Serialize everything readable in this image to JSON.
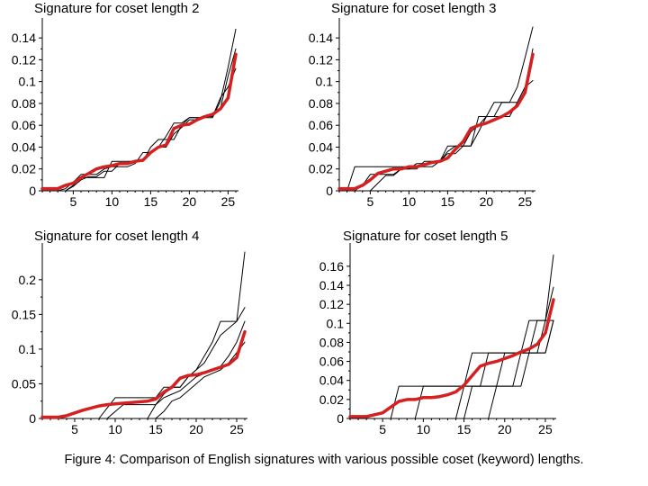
{
  "caption": "Figure 4: Comparison of English signatures with various possible coset (keyword) lengths.",
  "colors": {
    "reference": "#d42020",
    "coset": "#000000",
    "axis": "#000000"
  },
  "chart_data": [
    {
      "type": "line",
      "title": "Signature for coset length 2",
      "xlabel": "",
      "ylabel": "",
      "xlim": [
        1,
        26
      ],
      "ylim": [
        0,
        0.15
      ],
      "x_ticks": [
        5,
        10,
        15,
        20,
        25
      ],
      "y_ticks": [
        0,
        0.02,
        0.04,
        0.06,
        0.08,
        0.1,
        0.12,
        0.14
      ],
      "y_tick_labels": [
        "0",
        "0.02",
        "0.04",
        "0.06",
        "0.08",
        "0.1",
        "0.12",
        "0.14"
      ],
      "grid": false,
      "series": [
        {
          "role": "reference",
          "values": [
            0.002,
            0.002,
            0.002,
            0.005,
            0.007,
            0.012,
            0.016,
            0.02,
            0.022,
            0.023,
            0.025,
            0.025,
            0.027,
            0.028,
            0.035,
            0.04,
            0.042,
            0.057,
            0.06,
            0.061,
            0.065,
            0.068,
            0.07,
            0.075,
            0.085,
            0.125
          ]
        },
        {
          "role": "coset",
          "values": [
            0.0,
            0.0,
            0.0,
            0.0,
            0.005,
            0.012,
            0.012,
            0.012,
            0.012,
            0.027,
            0.027,
            0.027,
            0.027,
            0.027,
            0.04,
            0.047,
            0.047,
            0.047,
            0.06,
            0.067,
            0.067,
            0.067,
            0.067,
            0.082,
            0.113,
            0.148
          ]
        },
        {
          "role": "coset",
          "values": [
            0.0,
            0.0,
            0.0,
            0.002,
            0.008,
            0.015,
            0.015,
            0.015,
            0.02,
            0.022,
            0.022,
            0.022,
            0.025,
            0.035,
            0.035,
            0.04,
            0.05,
            0.062,
            0.062,
            0.067,
            0.067,
            0.067,
            0.07,
            0.075,
            0.105,
            0.13
          ]
        },
        {
          "role": "coset",
          "values": [
            0.0,
            0.0,
            0.0,
            0.0,
            0.004,
            0.01,
            0.013,
            0.013,
            0.018,
            0.018,
            0.025,
            0.025,
            0.028,
            0.028,
            0.035,
            0.04,
            0.04,
            0.052,
            0.058,
            0.065,
            0.065,
            0.068,
            0.068,
            0.085,
            0.095,
            0.112
          ]
        }
      ]
    },
    {
      "type": "line",
      "title": "Signature for coset length 3",
      "xlabel": "",
      "ylabel": "",
      "xlim": [
        1,
        26
      ],
      "ylim": [
        0,
        0.15
      ],
      "x_ticks": [
        5,
        10,
        15,
        20,
        25
      ],
      "y_ticks": [
        0,
        0.02,
        0.04,
        0.06,
        0.08,
        0.1,
        0.12,
        0.14
      ],
      "y_tick_labels": [
        "0",
        "0.02",
        "0.04",
        "0.06",
        "0.08",
        "0.1",
        "0.12",
        "0.14"
      ],
      "grid": false,
      "series": [
        {
          "role": "reference",
          "values": [
            0.002,
            0.002,
            0.002,
            0.005,
            0.01,
            0.016,
            0.018,
            0.02,
            0.02,
            0.022,
            0.022,
            0.024,
            0.026,
            0.027,
            0.03,
            0.038,
            0.045,
            0.057,
            0.06,
            0.062,
            0.065,
            0.068,
            0.072,
            0.078,
            0.09,
            0.125
          ]
        },
        {
          "role": "coset",
          "values": [
            0.0,
            0.0,
            0.022,
            0.022,
            0.022,
            0.022,
            0.022,
            0.022,
            0.022,
            0.022,
            0.022,
            0.022,
            0.022,
            0.027,
            0.041,
            0.041,
            0.041,
            0.041,
            0.068,
            0.068,
            0.081,
            0.081,
            0.081,
            0.095,
            0.122,
            0.15
          ]
        },
        {
          "role": "coset",
          "values": [
            0.0,
            0.0,
            0.0,
            0.005,
            0.015,
            0.015,
            0.015,
            0.015,
            0.02,
            0.02,
            0.025,
            0.025,
            0.025,
            0.027,
            0.036,
            0.041,
            0.041,
            0.041,
            0.054,
            0.068,
            0.068,
            0.081,
            0.081,
            0.081,
            0.095,
            0.13
          ]
        },
        {
          "role": "coset",
          "values": [
            0.0,
            0.0,
            0.0,
            0.0,
            0.0,
            0.007,
            0.014,
            0.014,
            0.02,
            0.02,
            0.02,
            0.027,
            0.027,
            0.027,
            0.034,
            0.034,
            0.041,
            0.054,
            0.06,
            0.068,
            0.068,
            0.068,
            0.068,
            0.081,
            0.095,
            0.101
          ]
        }
      ]
    },
    {
      "type": "line",
      "title": "Signature for coset length 4",
      "xlabel": "",
      "ylabel": "",
      "xlim": [
        1,
        26
      ],
      "ylim": [
        0,
        0.24
      ],
      "x_ticks": [
        5,
        10,
        15,
        20,
        25
      ],
      "y_ticks": [
        0,
        0.05,
        0.1,
        0.15,
        0.2
      ],
      "y_tick_labels": [
        "0",
        "0.05",
        "0.1",
        "0.15",
        "0.2"
      ],
      "grid": false,
      "series": [
        {
          "role": "reference",
          "values": [
            0.002,
            0.002,
            0.002,
            0.004,
            0.008,
            0.012,
            0.015,
            0.018,
            0.02,
            0.021,
            0.022,
            0.023,
            0.024,
            0.025,
            0.028,
            0.038,
            0.045,
            0.058,
            0.062,
            0.063,
            0.066,
            0.07,
            0.074,
            0.078,
            0.088,
            0.125
          ]
        },
        {
          "role": "coset",
          "values": [
            0.0,
            0.0,
            0.0,
            0.0,
            0.0,
            0.0,
            0.0,
            0.0,
            0.015,
            0.03,
            0.03,
            0.03,
            0.03,
            0.03,
            0.03,
            0.045,
            0.045,
            0.045,
            0.06,
            0.07,
            0.09,
            0.11,
            0.14,
            0.14,
            0.14,
            0.24
          ]
        },
        {
          "role": "coset",
          "values": [
            0.0,
            0.0,
            0.0,
            0.0,
            0.0,
            0.0,
            0.0,
            0.0,
            0.0,
            0.01,
            0.02,
            0.02,
            0.02,
            0.02,
            0.02,
            0.035,
            0.045,
            0.045,
            0.06,
            0.07,
            0.08,
            0.1,
            0.12,
            0.13,
            0.14,
            0.16
          ]
        },
        {
          "role": "coset",
          "values": [
            0.0,
            0.0,
            0.0,
            0.0,
            0.0,
            0.0,
            0.0,
            0.0,
            0.0,
            0.0,
            0.0,
            0.0,
            0.0,
            0.0,
            0.02,
            0.03,
            0.035,
            0.04,
            0.05,
            0.06,
            0.065,
            0.07,
            0.075,
            0.09,
            0.11,
            0.14
          ]
        },
        {
          "role": "coset",
          "values": [
            0.0,
            0.0,
            0.0,
            0.0,
            0.0,
            0.0,
            0.0,
            0.0,
            0.0,
            0.0,
            0.0,
            0.0,
            0.0,
            0.0,
            0.0,
            0.01,
            0.025,
            0.03,
            0.04,
            0.05,
            0.06,
            0.065,
            0.07,
            0.08,
            0.095,
            0.11
          ]
        }
      ]
    },
    {
      "type": "line",
      "title": "Signature for coset length 5",
      "xlabel": "",
      "ylabel": "",
      "xlim": [
        1,
        26
      ],
      "ylim": [
        0,
        0.175
      ],
      "x_ticks": [
        5,
        10,
        15,
        20,
        25
      ],
      "y_ticks": [
        0,
        0.02,
        0.04,
        0.06,
        0.08,
        0.1,
        0.12,
        0.14,
        0.16
      ],
      "y_tick_labels": [
        "0",
        "0.02",
        "0.04",
        "0.06",
        "0.08",
        "0.1",
        "0.12",
        "0.14",
        "0.16"
      ],
      "grid": false,
      "series": [
        {
          "role": "reference",
          "values": [
            0.002,
            0.002,
            0.002,
            0.004,
            0.006,
            0.012,
            0.018,
            0.02,
            0.02,
            0.022,
            0.022,
            0.023,
            0.025,
            0.028,
            0.035,
            0.045,
            0.055,
            0.058,
            0.06,
            0.063,
            0.066,
            0.07,
            0.073,
            0.078,
            0.09,
            0.125
          ]
        },
        {
          "role": "coset",
          "values": [
            0.0,
            0.0,
            0.0,
            0.0,
            0.0,
            0.0,
            0.034,
            0.034,
            0.034,
            0.034,
            0.034,
            0.034,
            0.034,
            0.034,
            0.034,
            0.069,
            0.069,
            0.069,
            0.069,
            0.069,
            0.069,
            0.069,
            0.103,
            0.103,
            0.103,
            0.172
          ]
        },
        {
          "role": "coset",
          "values": [
            0.0,
            0.0,
            0.0,
            0.0,
            0.0,
            0.0,
            0.0,
            0.0,
            0.0,
            0.034,
            0.034,
            0.034,
            0.034,
            0.034,
            0.034,
            0.034,
            0.034,
            0.069,
            0.069,
            0.069,
            0.069,
            0.069,
            0.069,
            0.103,
            0.103,
            0.138
          ]
        },
        {
          "role": "coset",
          "values": [
            0.0,
            0.0,
            0.0,
            0.0,
            0.0,
            0.0,
            0.0,
            0.0,
            0.0,
            0.0,
            0.0,
            0.0,
            0.0,
            0.0,
            0.034,
            0.034,
            0.034,
            0.034,
            0.034,
            0.069,
            0.069,
            0.069,
            0.069,
            0.069,
            0.103,
            0.103
          ]
        },
        {
          "role": "coset",
          "values": [
            0.0,
            0.0,
            0.0,
            0.0,
            0.0,
            0.0,
            0.0,
            0.0,
            0.0,
            0.0,
            0.0,
            0.0,
            0.0,
            0.0,
            0.0,
            0.034,
            0.034,
            0.034,
            0.034,
            0.034,
            0.034,
            0.069,
            0.069,
            0.069,
            0.069,
            0.103
          ]
        },
        {
          "role": "coset",
          "values": [
            0.0,
            0.0,
            0.0,
            0.0,
            0.0,
            0.0,
            0.0,
            0.0,
            0.0,
            0.0,
            0.0,
            0.0,
            0.0,
            0.0,
            0.0,
            0.0,
            0.0,
            0.0,
            0.034,
            0.034,
            0.034,
            0.034,
            0.069,
            0.069,
            0.069,
            0.103
          ]
        }
      ]
    }
  ]
}
